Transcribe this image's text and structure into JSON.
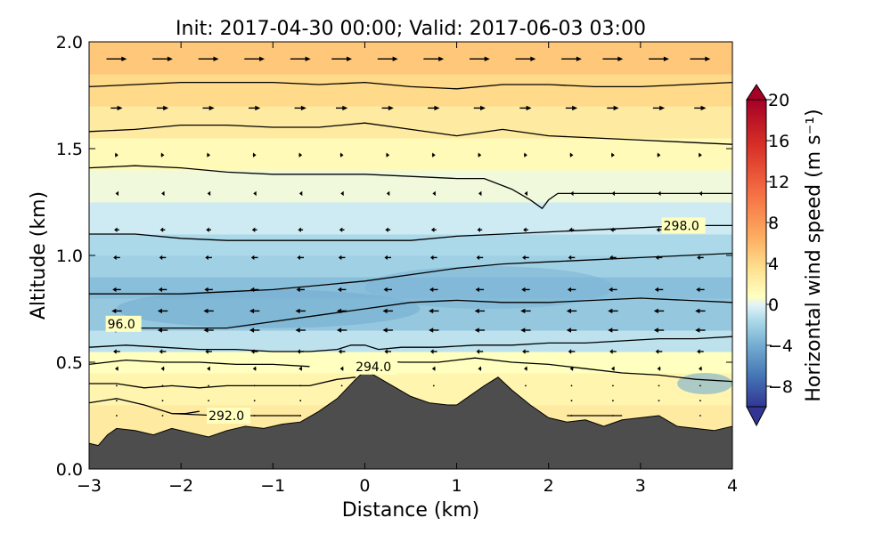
{
  "chart_data": {
    "type": "heatmap",
    "title": "Init: 2017-04-30 00:00; Valid: 2017-06-03 03:00",
    "xlabel": "Distance (km)",
    "ylabel": "Altitude (km)",
    "xlim": [
      -3,
      4
    ],
    "ylim": [
      0,
      2
    ],
    "xticks": [
      -3,
      -2,
      -1,
      0,
      1,
      2,
      3,
      4
    ],
    "xtick_labels": [
      "−3",
      "−2",
      "−1",
      "0",
      "1",
      "2",
      "3",
      "4"
    ],
    "yticks": [
      0.0,
      0.5,
      1.0,
      1.5,
      2.0
    ],
    "ytick_labels": [
      "0.0",
      "0.5",
      "1.0",
      "1.5",
      "2.0"
    ],
    "colorbar": {
      "label": "Horizontal wind speed (m s⁻¹)",
      "min": -10,
      "max": 20,
      "ticks": [
        20,
        16,
        12,
        8,
        4,
        0,
        -4,
        -8
      ],
      "tick_labels": [
        "20",
        "16",
        "12",
        "8",
        "4",
        "0",
        "−4",
        "−8"
      ],
      "extend": "both",
      "colormap": "RdYlBu_r"
    },
    "terrain": {
      "x": [
        -3.0,
        -2.9,
        -2.8,
        -2.7,
        -2.5,
        -2.3,
        -2.1,
        -1.9,
        -1.7,
        -1.5,
        -1.3,
        -1.1,
        -0.9,
        -0.7,
        -0.5,
        -0.3,
        -0.1,
        0.0,
        0.1,
        0.3,
        0.5,
        0.7,
        0.9,
        1.0,
        1.1,
        1.3,
        1.45,
        1.6,
        1.8,
        2.0,
        2.2,
        2.4,
        2.6,
        2.8,
        3.0,
        3.2,
        3.4,
        3.6,
        3.8,
        4.0
      ],
      "y": [
        0.12,
        0.11,
        0.16,
        0.19,
        0.18,
        0.16,
        0.19,
        0.17,
        0.15,
        0.18,
        0.2,
        0.19,
        0.21,
        0.22,
        0.27,
        0.33,
        0.42,
        0.46,
        0.44,
        0.39,
        0.34,
        0.31,
        0.3,
        0.3,
        0.33,
        0.39,
        0.43,
        0.37,
        0.3,
        0.24,
        0.22,
        0.23,
        0.2,
        0.23,
        0.24,
        0.25,
        0.2,
        0.19,
        0.18,
        0.2
      ],
      "color": "#4d4d4d"
    },
    "wind_speed_bands": [
      {
        "y": [
          0.0,
          0.3
        ],
        "value": 3
      },
      {
        "y": [
          0.3,
          0.45
        ],
        "value": 2
      },
      {
        "y": [
          0.45,
          0.55
        ],
        "value": 1
      },
      {
        "y": [
          0.55,
          0.65
        ],
        "value": -1
      },
      {
        "y": [
          0.65,
          0.8
        ],
        "value": -2.5
      },
      {
        "y": [
          0.8,
          0.9
        ],
        "value": -3
      },
      {
        "y": [
          0.9,
          1.0
        ],
        "value": -2
      },
      {
        "y": [
          1.0,
          1.1
        ],
        "value": -1.5
      },
      {
        "y": [
          1.1,
          1.25
        ],
        "value": -0.5
      },
      {
        "y": [
          1.25,
          1.4
        ],
        "value": 0.5
      },
      {
        "y": [
          1.4,
          1.55
        ],
        "value": 1.5
      },
      {
        "y": [
          1.55,
          1.7
        ],
        "value": 3
      },
      {
        "y": [
          1.7,
          1.85
        ],
        "value": 4.5
      },
      {
        "y": [
          1.85,
          2.0
        ],
        "value": 6
      }
    ],
    "negative_cores": [
      {
        "x": [
          -2.7,
          0.6
        ],
        "y": [
          0.66,
          0.84
        ],
        "value": -4
      },
      {
        "x": [
          0.0,
          2.7
        ],
        "y": [
          0.75,
          0.95
        ],
        "value": -3.5
      },
      {
        "x": [
          3.4,
          4.0
        ],
        "y": [
          0.35,
          0.45
        ],
        "value": -4
      }
    ],
    "theta_contours": [
      {
        "x": [
          -3.0,
          -2.7,
          -2.4,
          -2.1,
          -1.95,
          -1.8
        ],
        "y": [
          0.31,
          0.33,
          0.3,
          0.26,
          0.26,
          0.27
        ],
        "label": "",
        "label_x": null,
        "label_y": null
      },
      {
        "x": [
          -2.1,
          -1.6,
          -1.0,
          -0.7
        ],
        "y": [
          0.26,
          0.25,
          0.25,
          0.25
        ],
        "label": "292.0",
        "label_x": -1.7,
        "label_y": 0.25
      },
      {
        "x": [
          2.2,
          2.4,
          2.6,
          2.8
        ],
        "y": [
          0.25,
          0.25,
          0.25,
          0.25
        ],
        "label": "",
        "label_x": null,
        "label_y": null
      },
      {
        "x": [
          -3.0,
          -2.7,
          -2.4,
          -2.1,
          -1.8,
          -1.5,
          -1.2,
          -0.9,
          -0.6,
          -0.3,
          -0.1
        ],
        "y": [
          0.4,
          0.4,
          0.38,
          0.39,
          0.38,
          0.39,
          0.39,
          0.39,
          0.39,
          0.42,
          0.43
        ],
        "label": "",
        "label_x": null,
        "label_y": null
      },
      {
        "x": [
          -3.0,
          -2.6,
          -2.2,
          -1.8,
          -1.4,
          -1.0,
          -0.6
        ],
        "y": [
          0.49,
          0.51,
          0.5,
          0.5,
          0.49,
          0.49,
          0.48
        ],
        "label": "294.0",
        "label_x": -0.1,
        "label_y": 0.48
      },
      {
        "x": [
          0.0,
          0.4,
          0.8,
          1.2,
          1.6,
          2.0,
          2.4,
          2.8,
          3.2,
          3.6,
          4.0
        ],
        "y": [
          0.51,
          0.5,
          0.5,
          0.52,
          0.5,
          0.49,
          0.47,
          0.45,
          0.44,
          0.42,
          0.41
        ],
        "label": "",
        "label_x": null,
        "label_y": null
      },
      {
        "x": [
          -3.0,
          -2.6,
          -2.2,
          -1.8,
          -1.4,
          -1.0,
          -0.6,
          -0.3,
          -0.15,
          0.0,
          0.15,
          0.4,
          0.8,
          1.2,
          1.6,
          2.0,
          2.4,
          2.8,
          3.2,
          3.6,
          4.0
        ],
        "y": [
          0.57,
          0.58,
          0.57,
          0.56,
          0.56,
          0.55,
          0.55,
          0.56,
          0.58,
          0.58,
          0.56,
          0.57,
          0.57,
          0.58,
          0.58,
          0.59,
          0.59,
          0.6,
          0.61,
          0.61,
          0.62
        ],
        "label": "",
        "label_x": null,
        "label_y": null
      },
      {
        "x": [
          -2.5,
          -2.0,
          -1.5,
          -1.0,
          -0.5,
          0.0,
          0.5,
          1.0,
          1.5,
          2.0,
          2.5,
          3.0,
          3.5,
          4.0
        ],
        "y": [
          0.66,
          0.66,
          0.66,
          0.69,
          0.72,
          0.75,
          0.78,
          0.79,
          0.78,
          0.78,
          0.79,
          0.8,
          0.79,
          0.78
        ],
        "label": "96.0",
        "label_x": -2.8,
        "label_y": 0.68
      },
      {
        "x": [
          -3.0,
          -2.5,
          -2.0,
          -1.5,
          -1.0,
          -0.5,
          0.0,
          0.5,
          1.0,
          1.5,
          2.0,
          2.5,
          3.0,
          3.5,
          4.0
        ],
        "y": [
          0.82,
          0.82,
          0.82,
          0.83,
          0.84,
          0.86,
          0.88,
          0.91,
          0.94,
          0.96,
          0.97,
          0.98,
          0.99,
          1.0,
          1.01
        ],
        "label": "",
        "label_x": null,
        "label_y": null
      },
      {
        "x": [
          -3.0,
          -2.5,
          -2.0,
          -1.5,
          -1.0,
          -0.5,
          0.0,
          0.5,
          1.0,
          1.5,
          2.0,
          2.5,
          3.0,
          3.5,
          4.0
        ],
        "y": [
          1.1,
          1.1,
          1.08,
          1.07,
          1.07,
          1.07,
          1.07,
          1.07,
          1.09,
          1.1,
          1.11,
          1.12,
          1.13,
          1.14,
          1.14
        ],
        "label": "298.0",
        "label_x": 3.25,
        "label_y": 1.14
      },
      {
        "x": [
          -3.0,
          -2.5,
          -2.0,
          -1.5,
          -1.0,
          -0.5,
          0.0,
          0.5,
          1.0,
          1.3,
          1.6,
          1.8,
          1.93,
          2.0,
          2.1,
          2.5,
          3.0,
          3.5,
          4.0
        ],
        "y": [
          1.41,
          1.42,
          1.41,
          1.39,
          1.38,
          1.38,
          1.38,
          1.37,
          1.36,
          1.36,
          1.31,
          1.26,
          1.22,
          1.26,
          1.29,
          1.29,
          1.29,
          1.29,
          1.29
        ],
        "label": "",
        "label_x": null,
        "label_y": null
      },
      {
        "x": [
          -3.0,
          -2.5,
          -2.0,
          -1.5,
          -1.0,
          -0.5,
          0.0,
          0.5,
          1.0,
          1.5,
          2.0,
          2.5,
          3.0,
          3.5,
          4.0
        ],
        "y": [
          1.58,
          1.59,
          1.61,
          1.61,
          1.6,
          1.6,
          1.62,
          1.59,
          1.56,
          1.59,
          1.56,
          1.55,
          1.54,
          1.53,
          1.52
        ],
        "label": "",
        "label_x": null,
        "label_y": null
      },
      {
        "x": [
          -3.0,
          -2.5,
          -2.0,
          -1.5,
          -1.0,
          -0.5,
          0.0,
          0.5,
          1.0,
          1.5,
          2.0,
          2.5,
          3.0,
          3.5,
          4.0
        ],
        "y": [
          1.79,
          1.8,
          1.81,
          1.81,
          1.81,
          1.8,
          1.81,
          1.79,
          1.78,
          1.8,
          1.8,
          1.79,
          1.79,
          1.8,
          1.81
        ],
        "label": "",
        "label_x": null,
        "label_y": null
      }
    ],
    "vector_columns_x": [
      -2.7,
      -2.2,
      -1.7,
      -1.2,
      -0.7,
      -0.25,
      0.25,
      0.75,
      1.25,
      1.75,
      2.25,
      2.7,
      3.2,
      3.65
    ],
    "vector_rows": [
      {
        "y": 1.92,
        "u": 12
      },
      {
        "y": 1.69,
        "u": 7
      },
      {
        "y": 1.47,
        "u": 2
      },
      {
        "y": 1.29,
        "u": -1.5
      },
      {
        "y": 1.12,
        "u": -3
      },
      {
        "y": 0.99,
        "u": -4
      },
      {
        "y": 0.84,
        "u": -5
      },
      {
        "y": 0.74,
        "u": -6
      },
      {
        "y": 0.65,
        "u": -6
      },
      {
        "y": 0.55,
        "u": -4
      },
      {
        "y": 0.47,
        "u": -2
      },
      {
        "y": 0.39,
        "u": -1
      },
      {
        "y": 0.32,
        "u": -0.5
      },
      {
        "y": 0.25,
        "u": -0.5
      }
    ]
  }
}
